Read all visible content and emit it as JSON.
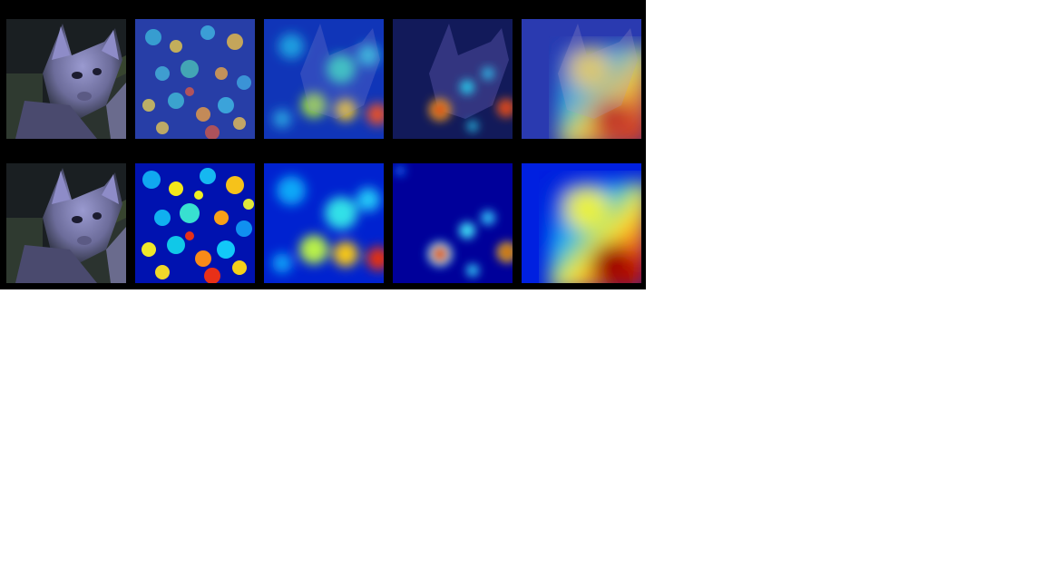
{
  "figure": {
    "subject": "cat photo",
    "rows": [
      {
        "role": "image-with-heatmap-overlay",
        "tiles": [
          "original-cat",
          "saliency-fine-overlay",
          "saliency-medium-overlay",
          "saliency-coarse-overlay",
          "saliency-layer-overlay"
        ]
      },
      {
        "role": "heatmap-only",
        "tiles": [
          "original-cat",
          "saliency-fine",
          "saliency-medium",
          "saliency-coarse",
          "saliency-layer"
        ]
      }
    ],
    "colormap": "jet",
    "colors": {
      "background": "#000000",
      "page": "#ffffff",
      "jet_low": "#00008b",
      "jet_high": "#8b0000"
    }
  }
}
